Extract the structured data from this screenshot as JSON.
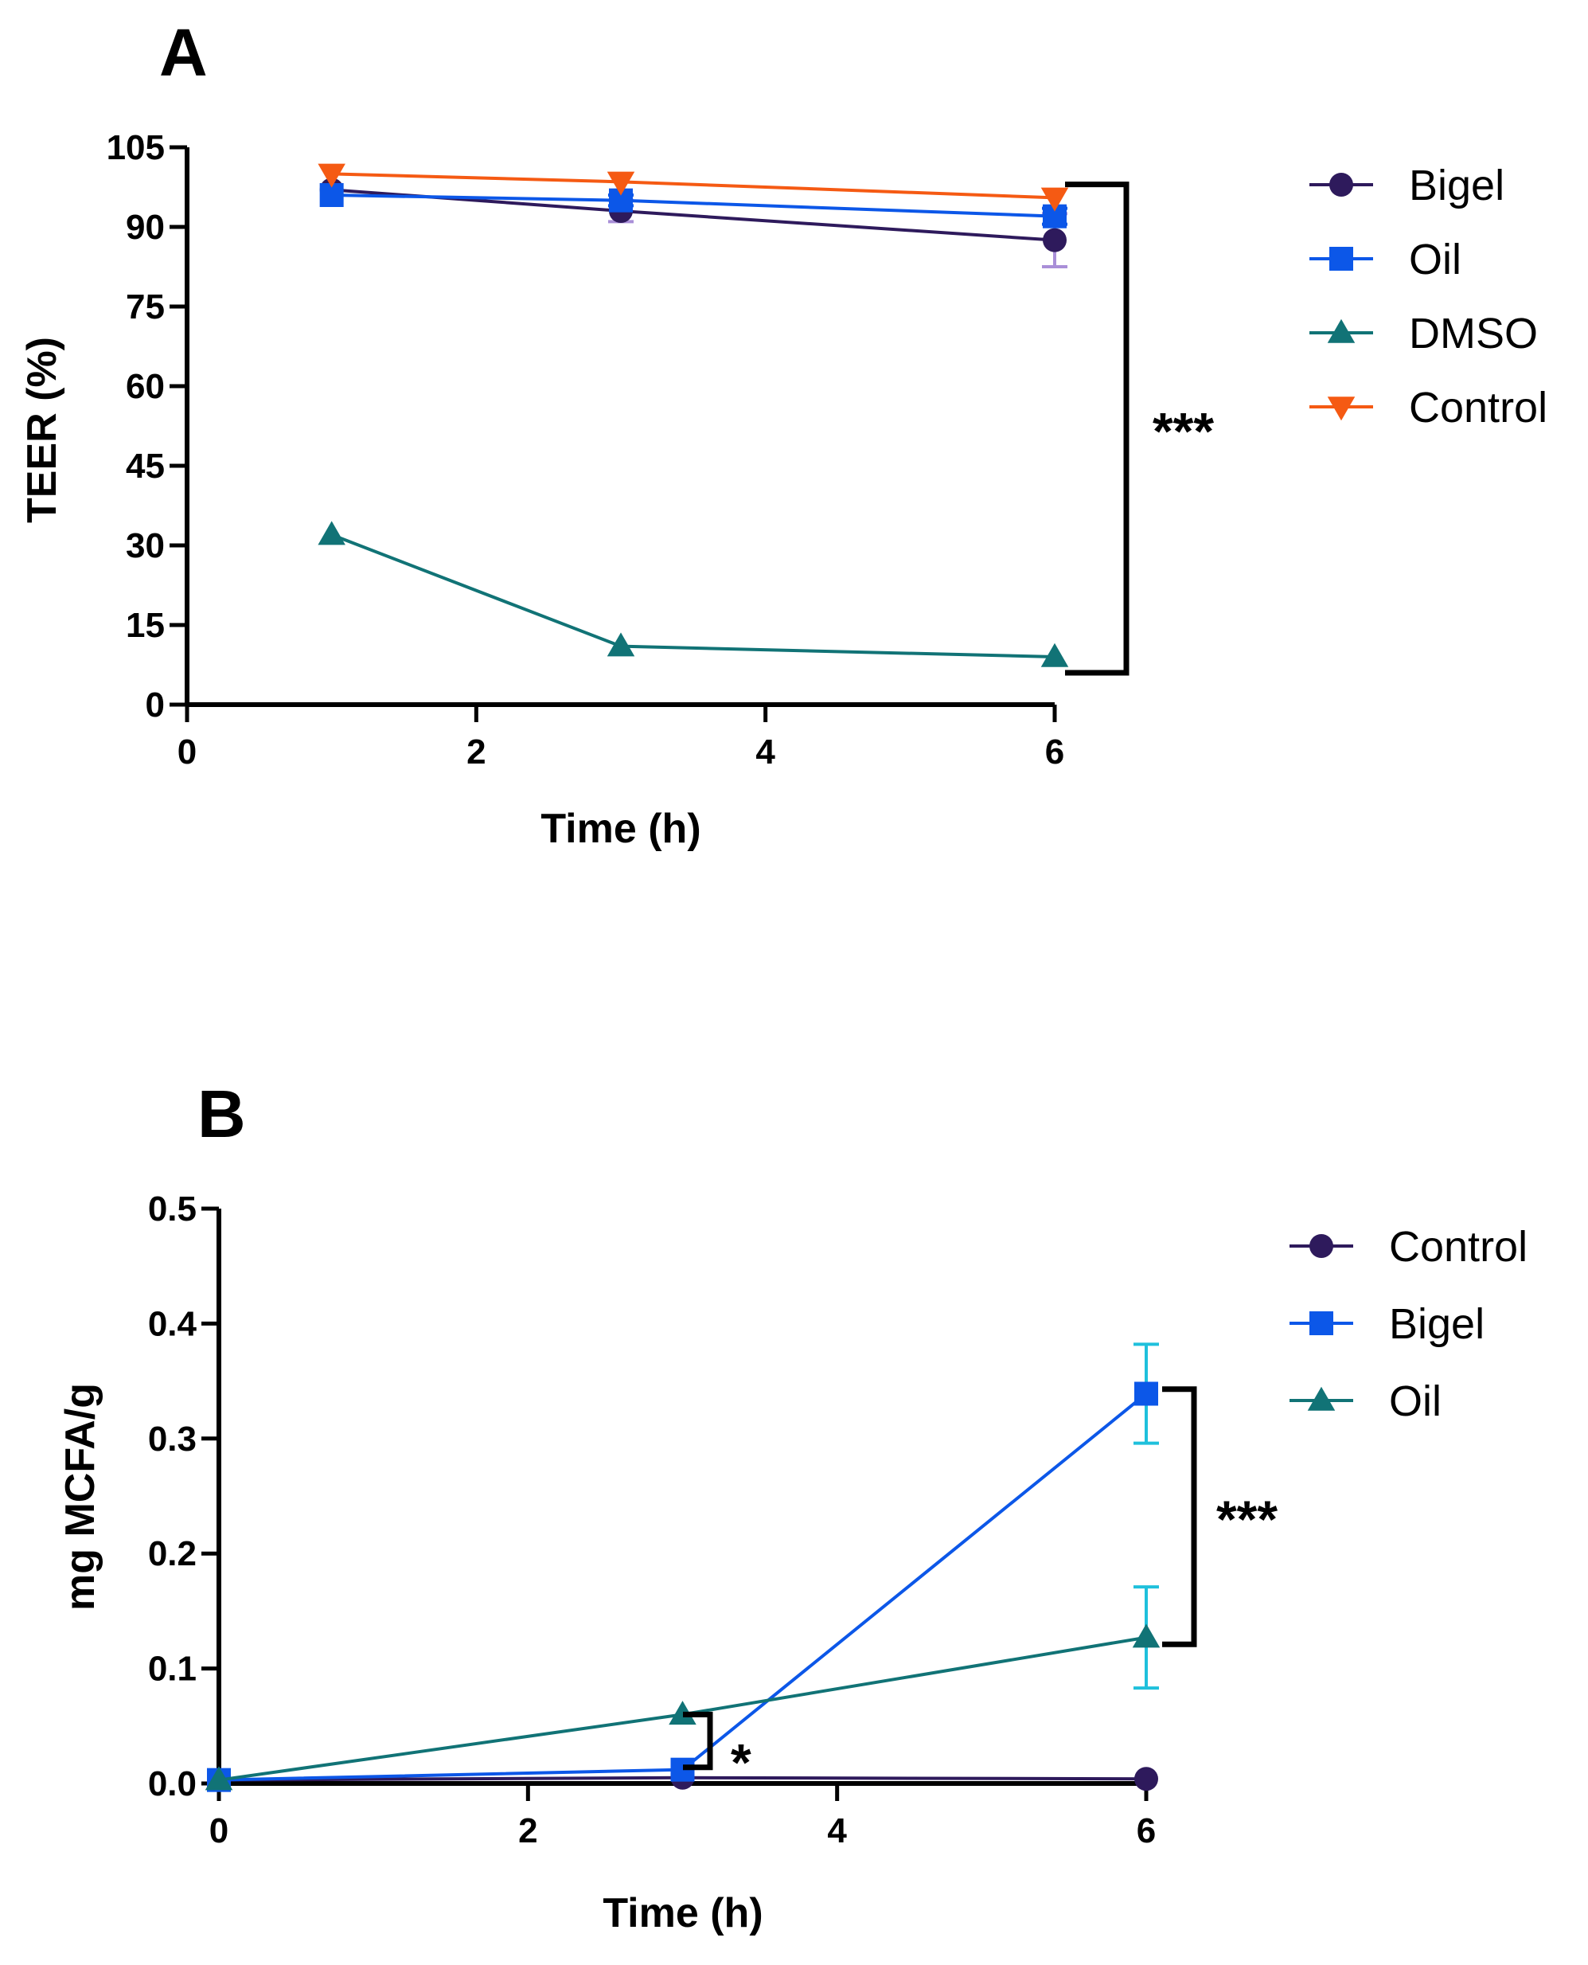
{
  "chart_data": [
    {
      "type": "line",
      "panel_label": "A",
      "title": "",
      "xlabel": "Time (h)",
      "ylabel": "TEER (%)",
      "xlim": [
        0,
        6
      ],
      "ylim": [
        0,
        105
      ],
      "xticks": [
        "0",
        "2",
        "4",
        "6"
      ],
      "yticks": [
        "0",
        "15",
        "30",
        "45",
        "60",
        "75",
        "90",
        "105"
      ],
      "grid": false,
      "legend_position": "right",
      "x": [
        1,
        3,
        6
      ],
      "series": [
        {
          "name": "Bigel",
          "values": [
            97,
            93,
            87.5
          ],
          "errors": [
            0,
            2,
            5
          ],
          "color": "#2e1a5c",
          "error_color": "#a98fd8",
          "marker": "circle"
        },
        {
          "name": "Oil",
          "values": [
            96,
            95,
            92
          ],
          "errors": [
            0,
            1,
            1.5
          ],
          "color": "#0c57e8",
          "error_color": "#0c57e8",
          "marker": "square"
        },
        {
          "name": "DMSO",
          "values": [
            32,
            11,
            9
          ],
          "errors": [
            0,
            0,
            0
          ],
          "color": "#117376",
          "error_color": "#117376",
          "marker": "triangle-up"
        },
        {
          "name": "Control",
          "values": [
            100,
            98.5,
            95.5
          ],
          "errors": [
            0,
            0,
            0
          ],
          "color": "#f55a13",
          "error_color": "#f55a13",
          "marker": "triangle-down"
        }
      ],
      "annotations": [
        {
          "type": "bracket",
          "x": 6,
          "y_top": 98,
          "y_bottom": 6,
          "label": "***"
        }
      ]
    },
    {
      "type": "line",
      "panel_label": "B",
      "title": "",
      "xlabel": "Time (h)",
      "ylabel": "mg MCFA/g",
      "xlim": [
        0,
        6
      ],
      "ylim": [
        0,
        0.5
      ],
      "xticks": [
        "0",
        "2",
        "4",
        "6"
      ],
      "yticks": [
        "0.0",
        "0.1",
        "0.2",
        "0.3",
        "0.4",
        "0.5"
      ],
      "grid": false,
      "legend_position": "right",
      "x": [
        0,
        3,
        6
      ],
      "series": [
        {
          "name": "Control",
          "values": [
            0.003,
            0.005,
            0.004
          ],
          "errors": [
            0,
            0,
            0
          ],
          "color": "#2e1a5c",
          "error_color": "#2e1a5c",
          "marker": "circle"
        },
        {
          "name": "Bigel",
          "values": [
            0.003,
            0.012,
            0.339
          ],
          "errors": [
            0,
            0,
            0.043
          ],
          "color": "#0c57e8",
          "error_color": "#1fc0dc",
          "marker": "square"
        },
        {
          "name": "Oil",
          "values": [
            0.003,
            0.06,
            0.127
          ],
          "errors": [
            0,
            0,
            0.044
          ],
          "color": "#117376",
          "error_color": "#1fc0dc",
          "marker": "triangle-up"
        }
      ],
      "annotations": [
        {
          "type": "bracket",
          "x": 3,
          "y_top": 0.06,
          "y_bottom": 0.014,
          "label": "*"
        },
        {
          "type": "bracket",
          "x": 6,
          "y_top": 0.343,
          "y_bottom": 0.121,
          "label": "***"
        }
      ]
    }
  ]
}
